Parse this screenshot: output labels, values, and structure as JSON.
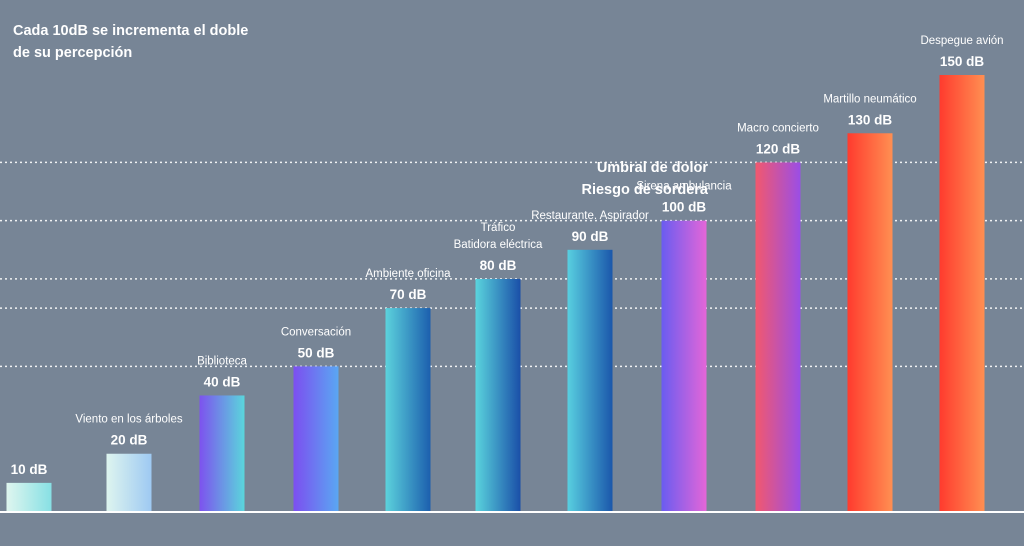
{
  "chart_data": {
    "type": "bar",
    "title_lines": [
      "Cada 10dB se incrementa el doble",
      "de su percepción"
    ],
    "annotation_lines": [
      "Umbral de dolor",
      "Riesgo de sordera"
    ],
    "ylim": [
      0,
      150
    ],
    "unit": "dB",
    "dotted_gridlines_at": [
      50,
      70,
      80,
      100,
      120
    ],
    "bars": [
      {
        "name": [],
        "value": 10,
        "value_label": "10 dB",
        "gradient": [
          "#dff6ef",
          "#87e0e4"
        ]
      },
      {
        "name": [
          "Viento en los árboles"
        ],
        "value": 20,
        "value_label": "20 dB",
        "gradient": [
          "#def5ef",
          "#9ec9f2"
        ]
      },
      {
        "name": [
          "Biblioteca"
        ],
        "value": 40,
        "value_label": "40 dB",
        "gradient": [
          "#7d52ee",
          "#5ad6dc"
        ]
      },
      {
        "name": [
          "Conversación"
        ],
        "value": 50,
        "value_label": "50 dB",
        "gradient": [
          "#7c4ff0",
          "#5aa7f2"
        ]
      },
      {
        "name": [
          "Ambiente oficina"
        ],
        "value": 70,
        "value_label": "70 dB",
        "gradient": [
          "#5cd2dc",
          "#1c5fae"
        ]
      },
      {
        "name": [
          "Tráfico",
          "Batidora eléctrica"
        ],
        "value": 80,
        "value_label": "80 dB",
        "gradient": [
          "#5ad4dd",
          "#1a4fa8"
        ]
      },
      {
        "name": [
          "Restaurante. Aspirador"
        ],
        "value": 90,
        "value_label": "90 dB",
        "gradient": [
          "#58cfe0",
          "#1b57ab"
        ]
      },
      {
        "name": [
          "Sirena ambulancia"
        ],
        "value": 100,
        "value_label": "100 dB",
        "gradient": [
          "#6a5cf0",
          "#e466d8"
        ]
      },
      {
        "name": [
          "Macro concierto"
        ],
        "value": 120,
        "value_label": "120 dB",
        "gradient": [
          "#f2586e",
          "#9a4ee6"
        ]
      },
      {
        "name": [
          "Martillo neumático"
        ],
        "value": 130,
        "value_label": "130 dB",
        "gradient": [
          "#ff3b2e",
          "#ff8f52"
        ]
      },
      {
        "name": [
          "Despegue avión"
        ],
        "value": 150,
        "value_label": "150 dB",
        "gradient": [
          "#ff3b2e",
          "#ff8f52"
        ]
      }
    ]
  }
}
